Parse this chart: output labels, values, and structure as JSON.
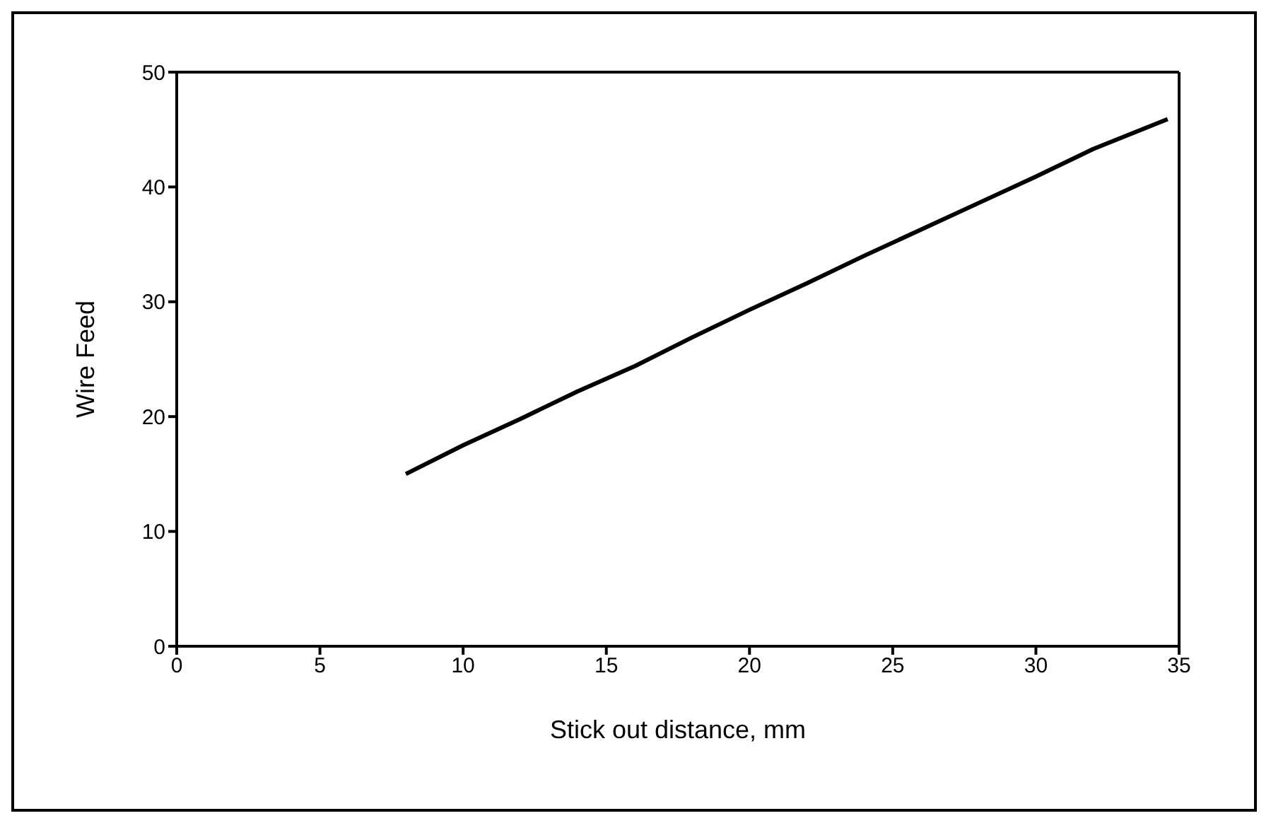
{
  "chart_data": {
    "type": "line",
    "xlabel": "Stick out distance, mm",
    "ylabel": "Wire Feed",
    "x": [
      8,
      10,
      12,
      14,
      16,
      18,
      20,
      22,
      24,
      26,
      28,
      30,
      32,
      34.6
    ],
    "series": [
      {
        "color": "#000000",
        "values": [
          15,
          17.5,
          19.8,
          22.2,
          24.4,
          26.9,
          29.3,
          31.6,
          34,
          36.3,
          38.6,
          40.9,
          43.3,
          45.9
        ]
      }
    ],
    "xlim": [
      0,
      35
    ],
    "xticks": [
      0,
      5,
      10,
      15,
      20,
      25,
      30,
      35
    ],
    "ylim": [
      0,
      50
    ],
    "yticks": [
      0,
      10,
      20,
      30,
      40,
      50
    ],
    "grid": false,
    "legend": false,
    "marker": "none",
    "line_style": "solid"
  }
}
